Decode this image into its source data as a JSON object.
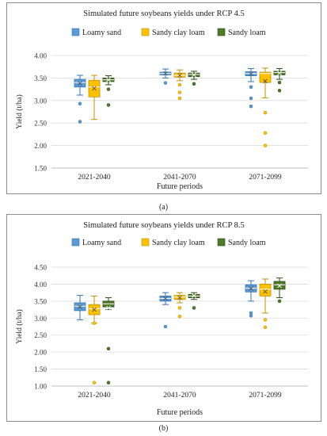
{
  "charts": [
    {
      "title": "Simulated future soybeans yields under RCP 4.5",
      "xlabel": "Future periods",
      "ylabel": "Yield (t/ha)",
      "caption": "(a)",
      "yticks": [
        "1.50",
        "2.00",
        "2.50",
        "3.00",
        "3.50",
        "4.00"
      ],
      "categories": [
        "2021-2040",
        "2041-2070",
        "2071-2099"
      ],
      "legend": [
        "Loamy sand",
        "Sandy clay loam",
        "Sandy loam"
      ]
    },
    {
      "title": "Simulated future soybeans yields under RCP 8.5",
      "xlabel": "Future periods",
      "ylabel": "Yield (t/ha)",
      "caption": "(b)",
      "yticks": [
        "1.00",
        "1.50",
        "2.00",
        "2.50",
        "3.00",
        "3.50",
        "4.00",
        "4.50"
      ],
      "categories": [
        "2021-2040",
        "2041-2070",
        "2071-2099"
      ],
      "legend": [
        "Loamy sand",
        "Sandy clay loam",
        "Sandy loam"
      ]
    }
  ],
  "chart_data": [
    {
      "type": "box",
      "title": "Simulated future soybeans yields under RCP 4.5",
      "xlabel": "Future periods",
      "ylabel": "Yield (t/ha)",
      "ylim": [
        1.5,
        4.0
      ],
      "grid": true,
      "legend_position": "top",
      "categories": [
        "2021-2040",
        "2041-2070",
        "2071-2099"
      ],
      "series": [
        {
          "name": "Loamy sand",
          "color": "#5b9bd5",
          "stroke": "#2e75b6",
          "boxes": [
            {
              "min": 3.12,
              "q1": 3.3,
              "median": 3.4,
              "q3": 3.47,
              "max": 3.56,
              "mean": 3.38,
              "outliers": [
                2.93,
                2.53
              ]
            },
            {
              "min": 3.5,
              "q1": 3.57,
              "median": 3.6,
              "q3": 3.63,
              "max": 3.7,
              "mean": 3.6,
              "outliers": [
                3.39
              ]
            },
            {
              "min": 3.42,
              "q1": 3.55,
              "median": 3.6,
              "q3": 3.64,
              "max": 3.71,
              "mean": 3.59,
              "outliers": [
                3.3,
                3.05,
                2.87
              ]
            }
          ]
        },
        {
          "name": "Sandy clay loam",
          "color": "#ffc000",
          "stroke": "#bf9000",
          "boxes": [
            {
              "min": 2.58,
              "q1": 3.08,
              "median": 3.3,
              "q3": 3.45,
              "max": 3.56,
              "mean": 3.27,
              "outliers": []
            },
            {
              "min": 3.44,
              "q1": 3.52,
              "median": 3.56,
              "q3": 3.61,
              "max": 3.68,
              "mean": 3.56,
              "outliers": [
                3.35,
                3.18,
                3.05
              ]
            },
            {
              "min": 3.06,
              "q1": 3.4,
              "median": 3.6,
              "q3": 3.63,
              "max": 3.72,
              "mean": 3.43,
              "outliers": [
                2.73,
                2.28,
                2.0
              ]
            }
          ]
        },
        {
          "name": "Sandy loam",
          "color": "#4f7a28",
          "stroke": "#2e4d15",
          "boxes": [
            {
              "min": 3.35,
              "q1": 3.42,
              "median": 3.46,
              "q3": 3.5,
              "max": 3.55,
              "mean": 3.46,
              "outliers": [
                3.25,
                2.9
              ]
            },
            {
              "min": 3.47,
              "q1": 3.53,
              "median": 3.58,
              "q3": 3.61,
              "max": 3.65,
              "mean": 3.57,
              "outliers": [
                3.37
              ]
            },
            {
              "min": 3.47,
              "q1": 3.57,
              "median": 3.62,
              "q3": 3.65,
              "max": 3.71,
              "mean": 3.61,
              "outliers": [
                3.4,
                3.22
              ]
            }
          ]
        }
      ]
    },
    {
      "type": "box",
      "title": "Simulated future soybeans yields under RCP 8.5",
      "xlabel": "Future periods",
      "ylabel": "Yield (t/ha)",
      "ylim": [
        1.0,
        4.5
      ],
      "grid": true,
      "legend_position": "top",
      "categories": [
        "2021-2040",
        "2041-2070",
        "2071-2099"
      ],
      "series": [
        {
          "name": "Loamy sand",
          "color": "#5b9bd5",
          "stroke": "#2e75b6",
          "boxes": [
            {
              "min": 2.95,
              "q1": 3.22,
              "median": 3.35,
              "q3": 3.45,
              "max": 3.67,
              "mean": 3.33,
              "outliers": []
            },
            {
              "min": 3.4,
              "q1": 3.5,
              "median": 3.58,
              "q3": 3.65,
              "max": 3.75,
              "mean": 3.58,
              "outliers": [
                2.75
              ]
            },
            {
              "min": 3.5,
              "q1": 3.77,
              "median": 3.88,
              "q3": 3.98,
              "max": 4.1,
              "mean": 3.87,
              "outliers": [
                3.15,
                3.07
              ]
            }
          ]
        },
        {
          "name": "Sandy clay loam",
          "color": "#ffc000",
          "stroke": "#bf9000",
          "boxes": [
            {
              "min": 2.85,
              "q1": 3.1,
              "median": 3.28,
              "q3": 3.4,
              "max": 3.65,
              "mean": 3.25,
              "outliers": [
                2.85,
                1.1
              ]
            },
            {
              "min": 3.45,
              "q1": 3.55,
              "median": 3.62,
              "q3": 3.67,
              "max": 3.75,
              "mean": 3.6,
              "outliers": [
                3.3,
                3.05
              ]
            },
            {
              "min": 3.15,
              "q1": 3.65,
              "median": 3.85,
              "q3": 4.0,
              "max": 4.15,
              "mean": 3.78,
              "outliers": [
                2.95,
                2.73
              ]
            }
          ]
        },
        {
          "name": "Sandy loam",
          "color": "#4f7a28",
          "stroke": "#2e4d15",
          "boxes": [
            {
              "min": 3.25,
              "q1": 3.33,
              "median": 3.42,
              "q3": 3.5,
              "max": 3.6,
              "mean": 3.3,
              "outliers": [
                2.1,
                1.1
              ]
            },
            {
              "min": 3.55,
              "q1": 3.6,
              "median": 3.65,
              "q3": 3.7,
              "max": 3.75,
              "mean": 3.66,
              "outliers": [
                3.3
              ]
            },
            {
              "min": 3.6,
              "q1": 3.85,
              "median": 3.98,
              "q3": 4.08,
              "max": 4.18,
              "mean": 3.95,
              "outliers": [
                3.5
              ]
            }
          ]
        }
      ]
    }
  ]
}
